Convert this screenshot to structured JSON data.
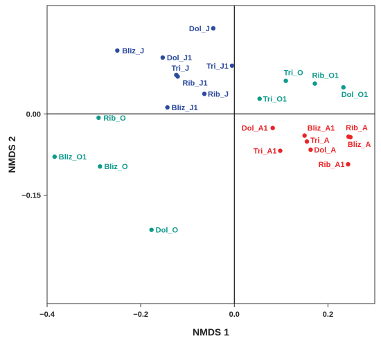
{
  "chart_data": {
    "type": "scatter",
    "title": "",
    "xlabel": "NMDS 1",
    "ylabel": "NMDS 2",
    "xlim": [
      -0.4,
      0.3
    ],
    "ylim": [
      -0.35,
      0.2
    ],
    "x_ticks": [
      -0.4,
      -0.2,
      0.0,
      0.2
    ],
    "x_tick_labels": [
      "−0.4",
      "−0.2",
      "0.0",
      "0.2"
    ],
    "y_ticks": [
      0.0,
      -0.15
    ],
    "y_tick_labels": [
      "0.00",
      "−0.15"
    ],
    "zero_lines": true,
    "grid": false,
    "legend": "none",
    "colors": {
      "blue": "#2b4a9e",
      "teal": "#0e9a8c",
      "red": "#e8262a"
    },
    "series": [
      {
        "color_key": "blue",
        "points": [
          {
            "label": "Dol_J",
            "x": -0.045,
            "y": 0.158
          },
          {
            "label": "Bliz_J",
            "x": -0.25,
            "y": 0.117
          },
          {
            "label": "Dol_J1",
            "x": -0.153,
            "y": 0.104
          },
          {
            "label": "Tri_J1",
            "x": -0.005,
            "y": 0.089
          },
          {
            "label": "Tri_J",
            "x": -0.124,
            "y": 0.072
          },
          {
            "label": "Rib_J1",
            "x": -0.121,
            "y": 0.069
          },
          {
            "label": "Rib_J",
            "x": -0.064,
            "y": 0.037
          },
          {
            "label": "Bliz_J1",
            "x": -0.143,
            "y": 0.012
          }
        ]
      },
      {
        "color_key": "teal",
        "points": [
          {
            "label": "Tri_O",
            "x": 0.11,
            "y": 0.061
          },
          {
            "label": "Rib_O1",
            "x": 0.172,
            "y": 0.056
          },
          {
            "label": "Dol_O1",
            "x": 0.233,
            "y": 0.049
          },
          {
            "label": "Tri_O1",
            "x": 0.054,
            "y": 0.028
          },
          {
            "label": "Rib_O",
            "x": -0.29,
            "y": -0.007
          },
          {
            "label": "Bliz_O1",
            "x": -0.384,
            "y": -0.079
          },
          {
            "label": "Bliz_O",
            "x": -0.287,
            "y": -0.097
          },
          {
            "label": "Dol_O",
            "x": -0.177,
            "y": -0.214
          }
        ]
      },
      {
        "color_key": "red",
        "points": [
          {
            "label": "Dol_A1",
            "x": 0.082,
            "y": -0.026
          },
          {
            "label": "Bliz_A1",
            "x": 0.15,
            "y": -0.04
          },
          {
            "label": "Rib_A",
            "x": 0.244,
            "y": -0.042
          },
          {
            "label": "Tri_A",
            "x": 0.155,
            "y": -0.051
          },
          {
            "label": "Bliz_A",
            "x": 0.248,
            "y": -0.043
          },
          {
            "label": "Dol_A",
            "x": 0.163,
            "y": -0.066
          },
          {
            "label": "Tri_A1",
            "x": 0.098,
            "y": -0.068
          },
          {
            "label": "Rib_A1",
            "x": 0.243,
            "y": -0.093
          }
        ]
      }
    ]
  }
}
